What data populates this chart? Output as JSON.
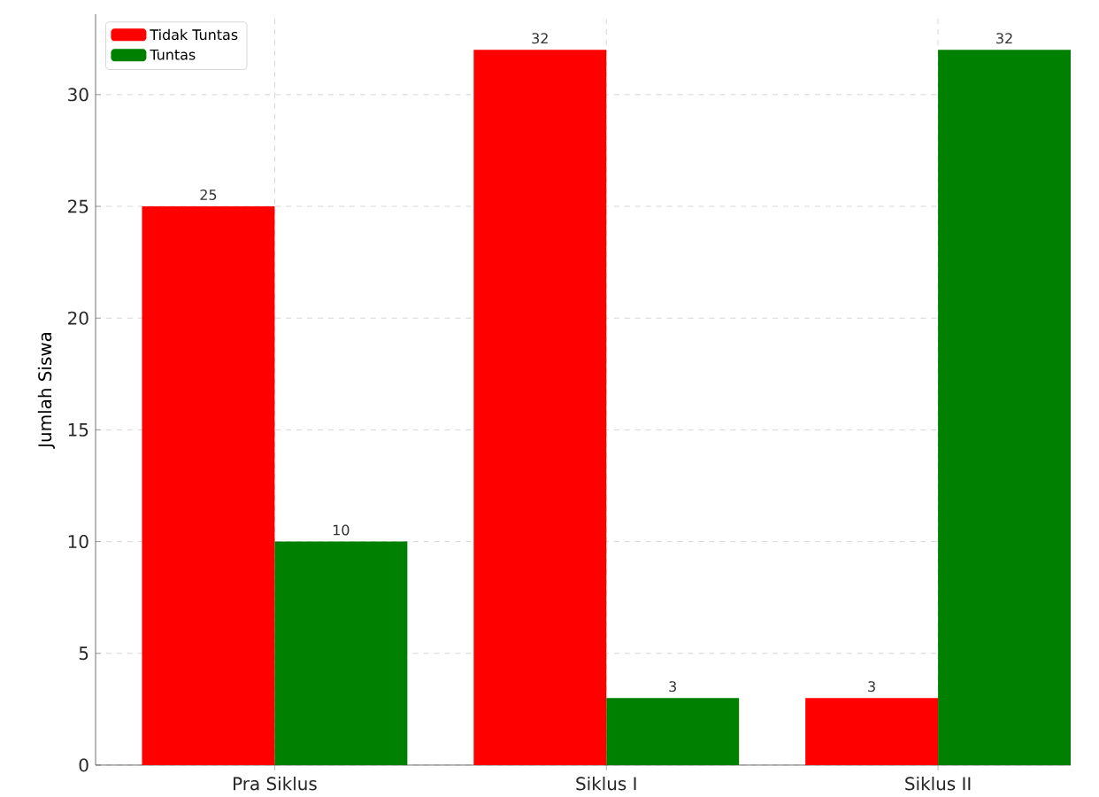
{
  "chart_data": {
    "type": "bar",
    "ylabel": "Jumlah Siswa",
    "categories": [
      "Pra Siklus",
      "Siklus I",
      "Siklus II"
    ],
    "series": [
      {
        "name": "Tidak Tuntas",
        "color": "#ff0000",
        "values": [
          25,
          32,
          3
        ]
      },
      {
        "name": "Tuntas",
        "color": "#008000",
        "values": [
          10,
          3,
          32
        ]
      }
    ],
    "ylim": [
      0,
      33.6
    ],
    "yticks": [
      0,
      5,
      10,
      15,
      20,
      25,
      30
    ],
    "grid": true,
    "legend": "top left",
    "data_labels": true
  }
}
